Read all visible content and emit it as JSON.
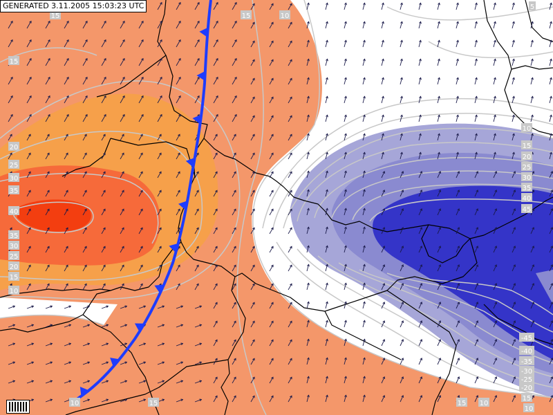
{
  "generated_label": "GENERATED 3.11.2005 15:03:23 UTC",
  "colors": {
    "warm_light": "#f4976a",
    "warm_mid": "#f6a04a",
    "warm_strong": "#f66a3a",
    "warm_core": "#f33e10",
    "cold_light": "#a6a6d8",
    "cold_mid": "#8a8ad0",
    "cold_strong": "#3434c8",
    "front": "#1e3cff",
    "border": "#000000",
    "isoline": "#c8c8c8",
    "wind_arrow": "#1a1a4a"
  },
  "icons": {
    "front": "cold-front-triangles",
    "wind": "wind-arrow",
    "legend": "legend-bars-icon"
  },
  "contour_labels": [
    {
      "text": "15"
    },
    {
      "text": "10"
    },
    {
      "text": "15"
    },
    {
      "text": "20"
    },
    {
      "text": "25"
    },
    {
      "text": "30"
    },
    {
      "text": "35"
    },
    {
      "text": "40"
    },
    {
      "text": "35"
    },
    {
      "text": "30"
    },
    {
      "text": "25"
    },
    {
      "text": "20"
    },
    {
      "text": "15"
    },
    {
      "text": "10"
    },
    {
      "text": "15"
    },
    {
      "text": "10"
    },
    {
      "text": "10"
    },
    {
      "text": "15"
    },
    {
      "text": "15"
    },
    {
      "text": "10"
    },
    {
      "text": "15"
    },
    {
      "text": "20"
    },
    {
      "text": "25"
    },
    {
      "text": "30"
    },
    {
      "text": "35"
    },
    {
      "text": "40"
    },
    {
      "text": "45"
    },
    {
      "text": "-45"
    },
    {
      "text": "-40"
    },
    {
      "text": "-35"
    },
    {
      "text": "-30"
    },
    {
      "text": "-25"
    },
    {
      "text": "-20"
    },
    {
      "text": "15"
    },
    {
      "text": "10"
    },
    {
      "text": "5"
    }
  ]
}
